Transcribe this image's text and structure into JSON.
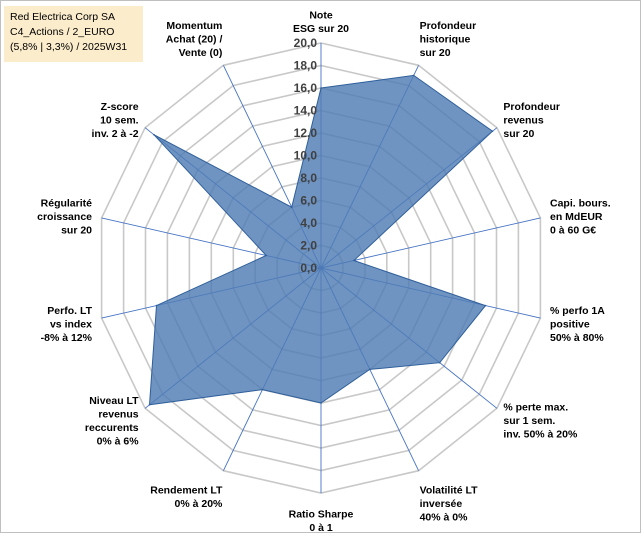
{
  "info": {
    "line1": "Red Electrica Corp SA",
    "line2": "C4_Actions / 2_EURO",
    "line3": "(5,8% | 3,3%) / 2025W31"
  },
  "chart_data": {
    "type": "radar",
    "rmax": 20,
    "rings": 10,
    "tick_labels": [
      "0,0",
      "2,0",
      "4,0",
      "6,0",
      "8,0",
      "10,0",
      "12,0",
      "14,0",
      "16,0",
      "18,0",
      "20,0"
    ],
    "axes": [
      [
        "Note",
        "ESG sur 20"
      ],
      [
        "Profondeur",
        "historique",
        "sur 20"
      ],
      [
        "Profondeur",
        "revenus",
        "sur 20"
      ],
      [
        "Capi. bours.",
        "en MdEUR",
        "0 à 60 G€"
      ],
      [
        "% perfo 1A",
        "positive",
        "50% à 80%"
      ],
      [
        "% perte max.",
        "sur 1 sem.",
        "inv. 50% à 20%"
      ],
      [
        "Volatilité LT",
        "inversée",
        "40% à 0%"
      ],
      [
        "Ratio Sharpe",
        "0 à 1"
      ],
      [
        "Rendement LT",
        "0% à 20%"
      ],
      [
        "Niveau LT",
        "revenus",
        "reccurents",
        "0% à 6%"
      ],
      [
        "Perfo. LT",
        "vs index",
        "-8% à 12%"
      ],
      [
        "Régularité",
        "croissance",
        "sur 20"
      ],
      [
        "Z-score",
        "10 sem.",
        "inv. 2 à -2"
      ],
      [
        "Momentum",
        "Achat (20) /",
        "Vente (0)"
      ]
    ],
    "values": [
      16,
      19,
      19.5,
      3,
      15,
      13.5,
      10,
      12,
      12,
      19.5,
      15,
      5,
      19,
      6
    ],
    "colors": {
      "fill": "#4f7db5",
      "stroke": "#2f5f9a",
      "grid": "#c8c8c8",
      "spoke": "#4472c4"
    }
  }
}
